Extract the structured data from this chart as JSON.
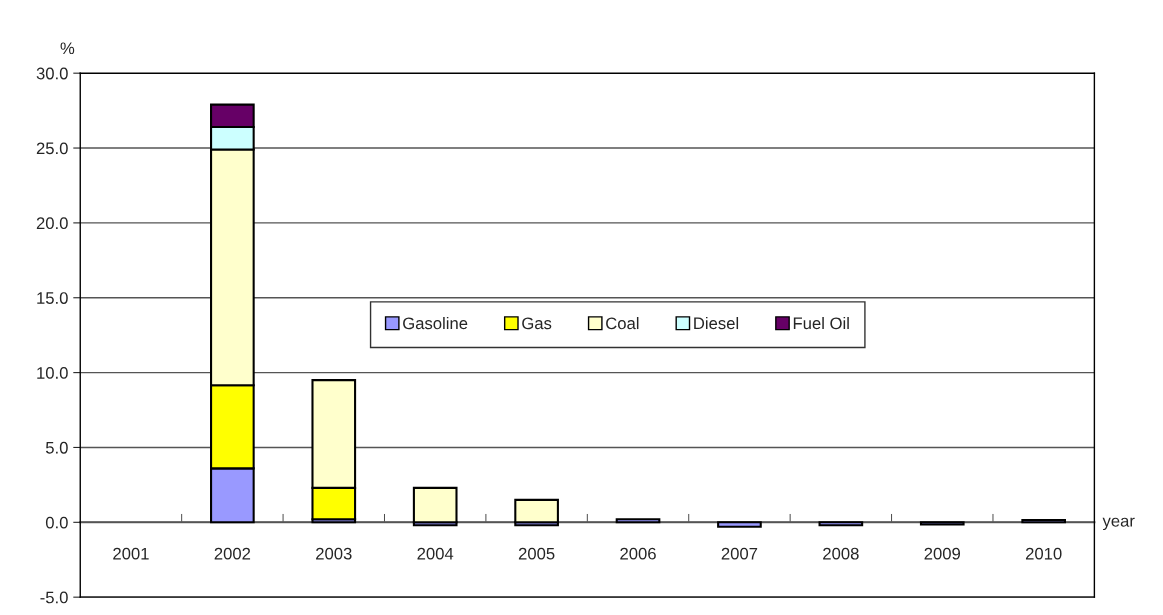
{
  "chart_data": {
    "type": "bar",
    "stacked": true,
    "xlabel": "year",
    "ylabel": "%",
    "categories": [
      "2001",
      "2002",
      "2003",
      "2004",
      "2005",
      "2006",
      "2007",
      "2008",
      "2009",
      "2010"
    ],
    "series": [
      {
        "name": "Gasoline",
        "color": "#9999ff",
        "values": [
          null,
          3.6,
          0.2,
          -0.2,
          -0.2,
          0.2,
          -0.3,
          -0.2,
          -0.15,
          0.15
        ]
      },
      {
        "name": "Gas",
        "color": "#ffff00",
        "values": [
          null,
          5.55,
          2.1,
          null,
          null,
          null,
          null,
          null,
          null,
          null
        ]
      },
      {
        "name": "Coal",
        "color": "#ffffcc",
        "values": [
          null,
          15.75,
          7.2,
          2.3,
          1.5,
          null,
          null,
          null,
          null,
          null
        ]
      },
      {
        "name": "Diesel",
        "color": "#ccffff",
        "values": [
          null,
          1.5,
          null,
          null,
          null,
          null,
          null,
          null,
          null,
          null
        ]
      },
      {
        "name": "Fuel Oil",
        "color": "#660066",
        "values": [
          null,
          1.5,
          null,
          null,
          null,
          null,
          null,
          null,
          null,
          null
        ]
      }
    ],
    "ylim": [
      -5,
      30
    ],
    "yticks": [
      {
        "value": -5,
        "label": "-5.0"
      },
      {
        "value": 0,
        "label": "0.0"
      },
      {
        "value": 5,
        "label": "5.0"
      },
      {
        "value": 10,
        "label": "10.0"
      },
      {
        "value": 15,
        "label": "15.0"
      },
      {
        "value": 20,
        "label": "20.0"
      },
      {
        "value": 25,
        "label": "25.0"
      },
      {
        "value": 30,
        "label": "30.0"
      }
    ],
    "grid": "y",
    "legend": "center"
  }
}
